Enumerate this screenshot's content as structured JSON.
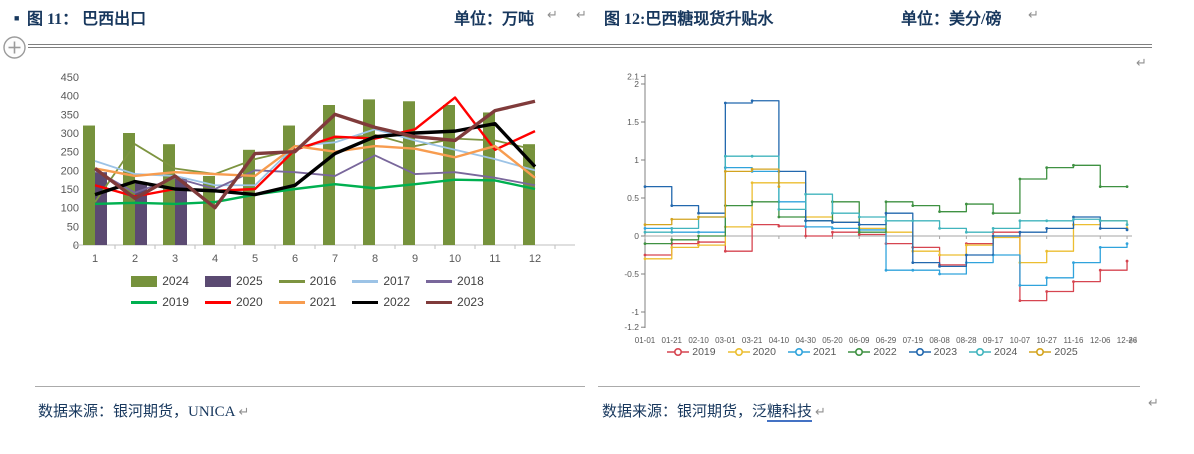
{
  "page": {
    "return_mark": "↵"
  },
  "left_panel": {
    "bullet": "■",
    "title": "图 11： 巴西出口",
    "unit": "单位：万吨",
    "source": "数据来源：银河期货，UNICA"
  },
  "right_panel": {
    "title": "图 12:巴西糖现货升贴水",
    "unit": "单位：美分/磅",
    "source_prefix": "数据来源：银河期货，泛",
    "source_link": "糖科技"
  },
  "chart_data": [
    {
      "id": "brazil-exports",
      "type": "bar+line",
      "title": "巴西出口",
      "unit": "万吨",
      "categories": [
        "1",
        "2",
        "3",
        "4",
        "5",
        "6",
        "7",
        "8",
        "9",
        "10",
        "11",
        "12"
      ],
      "ylim": [
        0,
        450
      ],
      "ytick_step": 50,
      "grid": false,
      "legend_position": "bottom",
      "bar_series": [
        {
          "name": "2024",
          "color": "#76923c",
          "values": [
            320,
            300,
            270,
            185,
            255,
            320,
            375,
            390,
            385,
            375,
            355,
            270
          ]
        },
        {
          "name": "2025",
          "color": "#5b4a72",
          "values": [
            195,
            165,
            178,
            null,
            null,
            null,
            null,
            null,
            null,
            null,
            null,
            null
          ]
        }
      ],
      "line_series": [
        {
          "name": "2016",
          "color": "#7d9440",
          "w": 1.8,
          "values": [
            115,
            270,
            205,
            190,
            230,
            255,
            285,
            295,
            265,
            285,
            280,
            255
          ]
        },
        {
          "name": "2017",
          "color": "#9cc3e6",
          "w": 1.8,
          "values": [
            225,
            190,
            185,
            160,
            160,
            265,
            275,
            310,
            280,
            255,
            230,
            200
          ]
        },
        {
          "name": "2018",
          "color": "#79679b",
          "w": 1.8,
          "values": [
            200,
            140,
            180,
            150,
            200,
            195,
            185,
            240,
            190,
            195,
            180,
            160
          ]
        },
        {
          "name": "2019",
          "color": "#00b050",
          "w": 2.4,
          "values": [
            110,
            113,
            110,
            115,
            135,
            150,
            163,
            152,
            163,
            175,
            173,
            150
          ]
        },
        {
          "name": "2020",
          "color": "#ff0000",
          "w": 2.4,
          "values": [
            160,
            130,
            150,
            145,
            150,
            255,
            290,
            285,
            310,
            395,
            255,
            305
          ]
        },
        {
          "name": "2021",
          "color": "#f79c4f",
          "w": 2.4,
          "values": [
            205,
            185,
            195,
            190,
            185,
            265,
            250,
            265,
            258,
            235,
            265,
            180
          ]
        },
        {
          "name": "2022",
          "color": "#000000",
          "w": 3.4,
          "values": [
            135,
            170,
            150,
            145,
            135,
            160,
            245,
            290,
            300,
            305,
            325,
            210
          ]
        },
        {
          "name": "2023",
          "color": "#803b3b",
          "w": 3.4,
          "values": [
            205,
            125,
            185,
            100,
            245,
            250,
            350,
            315,
            290,
            280,
            360,
            385
          ]
        }
      ],
      "legend_rows": [
        [
          "2024",
          "2025",
          "2016",
          "2017",
          "2018"
        ],
        [
          "2019",
          "2020",
          "2021",
          "2022",
          "2023"
        ]
      ]
    },
    {
      "id": "brazil-sugar-spot-premium",
      "type": "line",
      "title": "巴西糖现货升贴水",
      "unit": "美分/磅",
      "x": [
        "01-01",
        "01-21",
        "02-10",
        "03-01",
        "03-21",
        "04-10",
        "04-30",
        "05-20",
        "06-09",
        "06-29",
        "07-19",
        "08-08",
        "08-28",
        "09-17",
        "10-07",
        "10-27",
        "11-16",
        "12-06",
        "12-26"
      ],
      "ylim": [
        -1.2,
        2.1
      ],
      "yticks": [
        2.1,
        2,
        1.5,
        1,
        0.5,
        0,
        -0.5,
        -1,
        -1.2
      ],
      "step_interpolation": true,
      "legend_position": "bottom",
      "series": [
        {
          "name": "2019",
          "color": "#d64550",
          "values": [
            -0.25,
            -0.1,
            -0.08,
            -0.2,
            0.15,
            0.13,
            0.0,
            0.05,
            0.02,
            -0.1,
            -0.15,
            -0.38,
            -0.1,
            0.05,
            -0.85,
            -0.73,
            -0.6,
            -0.45,
            -0.33
          ]
        },
        {
          "name": "2020",
          "color": "#ecbe30",
          "values": [
            -0.3,
            -0.15,
            -0.12,
            0.12,
            0.7,
            0.7,
            0.25,
            0.18,
            0.1,
            0.05,
            -0.2,
            -0.25,
            -0.12,
            -0.02,
            -0.35,
            -0.2,
            0.15,
            0.2,
            0.1
          ]
        },
        {
          "name": "2021",
          "color": "#30a3dc",
          "values": [
            0.1,
            0.05,
            0.05,
            0.9,
            0.85,
            0.45,
            0.12,
            0.1,
            0.08,
            -0.45,
            -0.45,
            -0.5,
            -0.35,
            -0.25,
            -0.65,
            -0.55,
            -0.35,
            -0.15,
            -0.1
          ]
        },
        {
          "name": "2022",
          "color": "#3f9142",
          "values": [
            -0.1,
            -0.05,
            0.0,
            0.4,
            0.45,
            0.25,
            0.2,
            0.45,
            0.05,
            0.45,
            0.4,
            0.32,
            0.42,
            0.3,
            0.75,
            0.9,
            0.93,
            0.65,
            0.65
          ]
        },
        {
          "name": "2023",
          "color": "#2268ae",
          "values": [
            0.65,
            0.4,
            0.3,
            1.75,
            1.78,
            0.85,
            0.2,
            0.18,
            0.15,
            0.3,
            -0.35,
            -0.4,
            -0.25,
            0.0,
            0.05,
            0.1,
            0.25,
            0.1,
            0.08
          ]
        },
        {
          "name": "2024",
          "color": "#41b4bd",
          "values": [
            0.05,
            0.1,
            0.25,
            1.05,
            1.05,
            0.35,
            0.55,
            0.3,
            0.25,
            0.2,
            0.2,
            0.1,
            0.05,
            0.1,
            0.2,
            0.2,
            0.22,
            0.2,
            0.15
          ]
        },
        {
          "name": "2025",
          "color": "#d3a31f",
          "values": [
            0.15,
            0.22,
            0.25,
            0.85,
            0.88,
            0.65,
            null,
            null,
            null,
            null,
            null,
            null,
            null,
            null,
            null,
            null,
            null,
            null,
            null
          ]
        }
      ],
      "legend": [
        "2019",
        "2020",
        "2021",
        "2022",
        "2023",
        "2024",
        "2025"
      ]
    }
  ]
}
